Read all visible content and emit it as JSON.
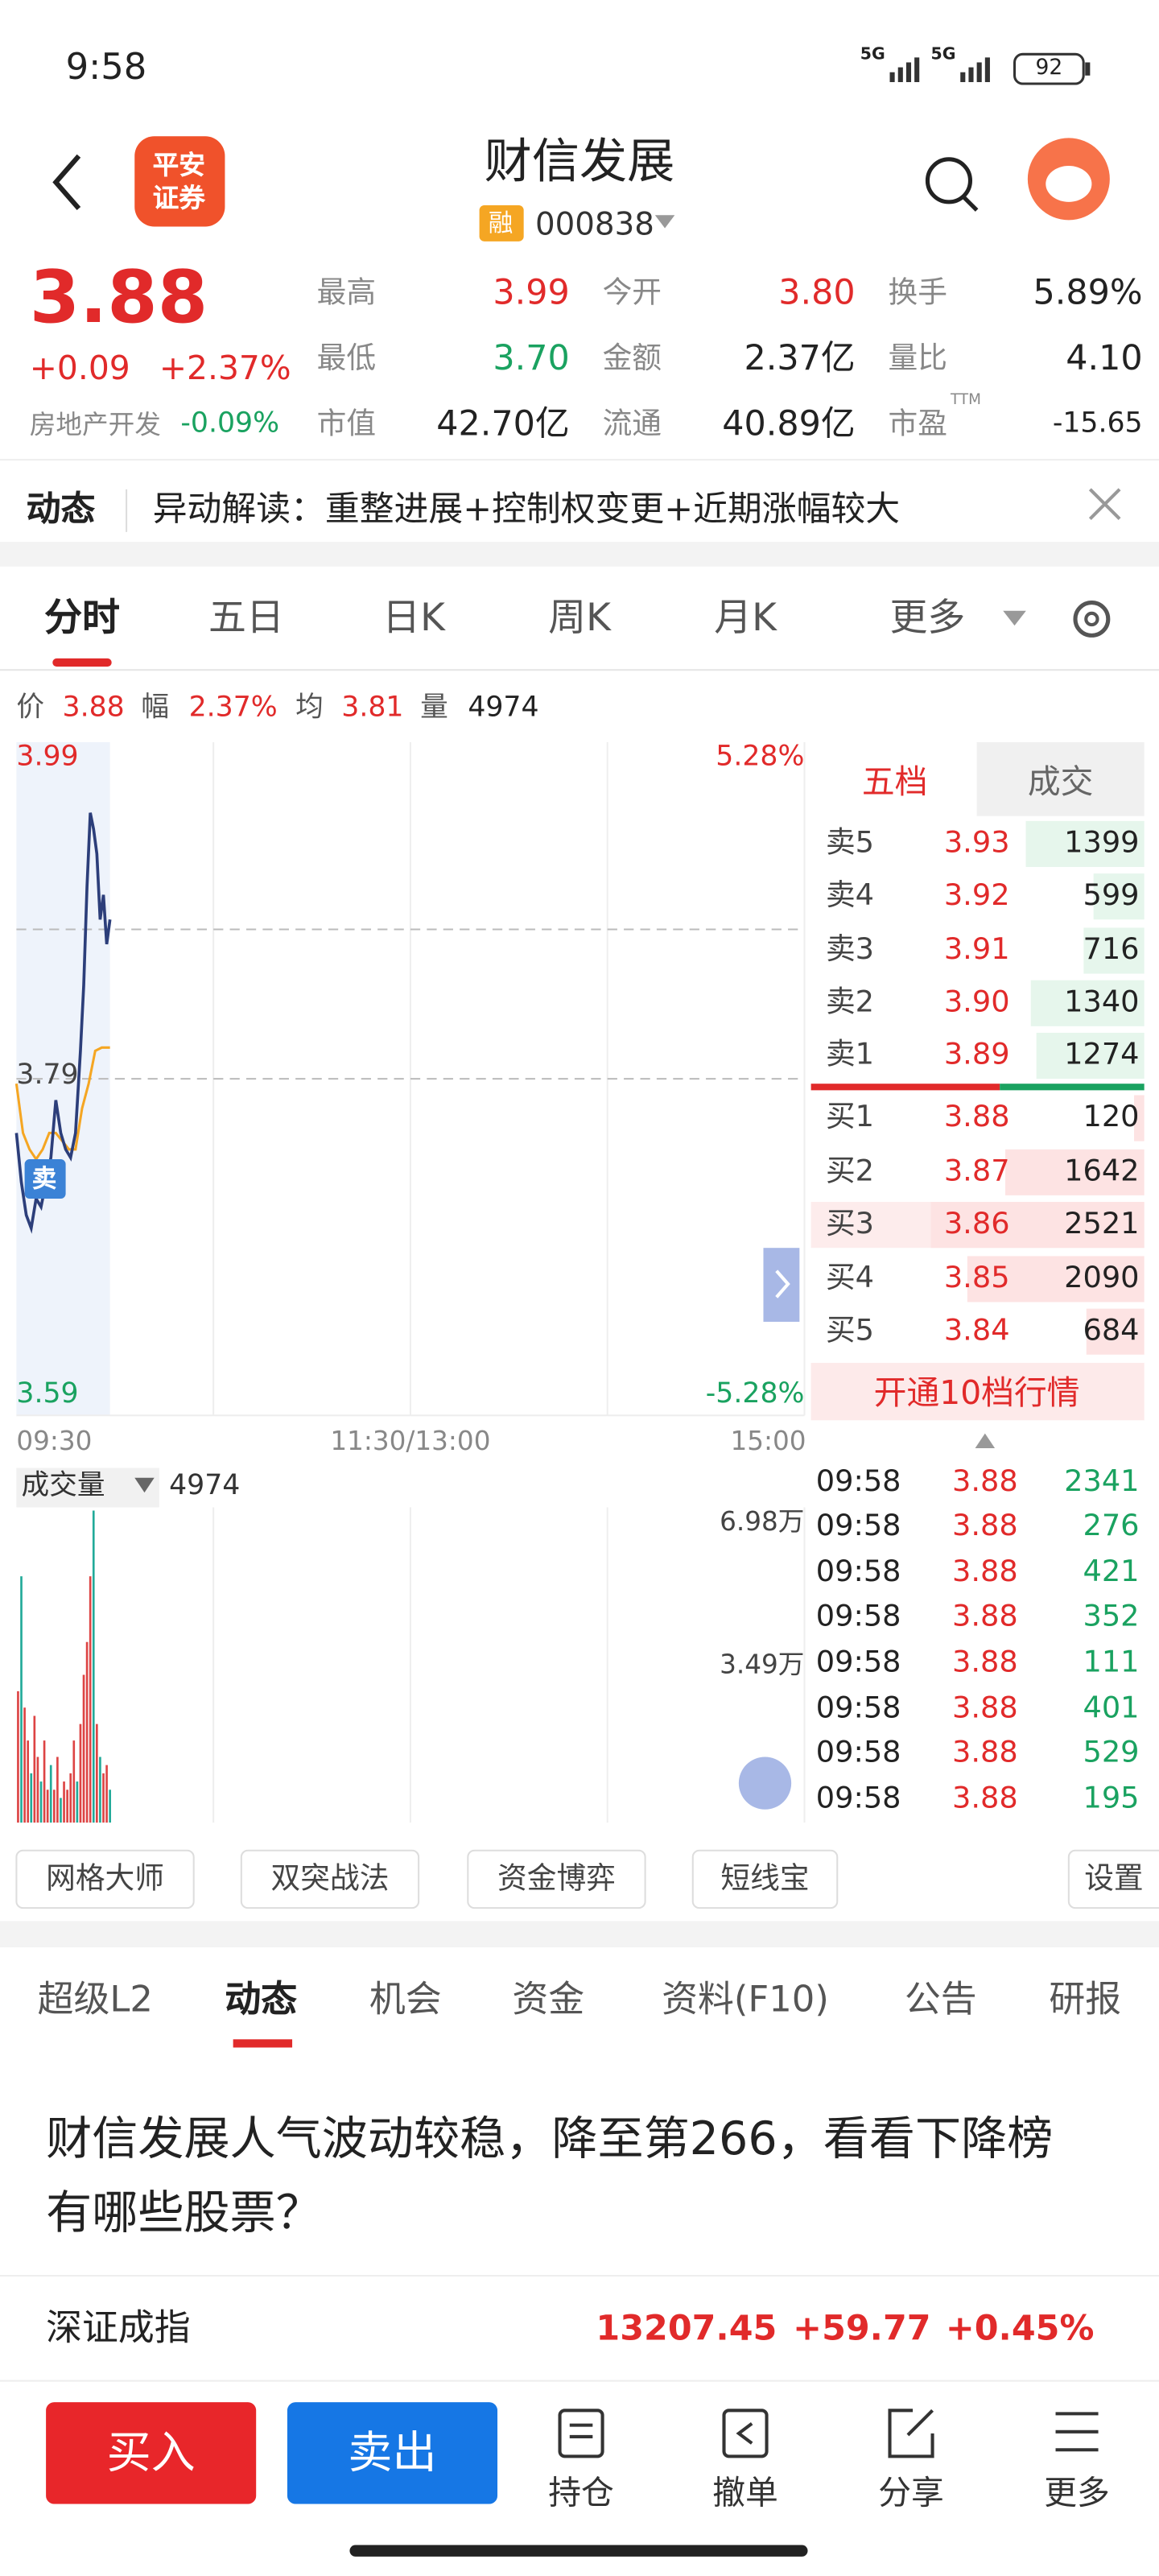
{
  "status": {
    "time": "9:58",
    "net": [
      "5G",
      "5G"
    ],
    "battery": "92"
  },
  "header": {
    "logo": [
      "平安",
      "证券"
    ],
    "title": "财信发展",
    "tag": "融",
    "code": "000838"
  },
  "quote": {
    "price": "3.88",
    "change": "+0.09",
    "pct": "+2.37%",
    "sector": "房地产开发",
    "sector_pct": "-0.09%",
    "stats": [
      [
        "最高",
        "3.99"
      ],
      [
        "今开",
        "3.80"
      ],
      [
        "换手",
        "5.89%"
      ],
      [
        "最低",
        "3.70"
      ],
      [
        "金额",
        "2.37亿"
      ],
      [
        "量比",
        "4.10"
      ],
      [
        "市值",
        "42.70亿"
      ],
      [
        "流通",
        "40.89亿"
      ],
      [
        "市盈",
        "-15.65"
      ]
    ],
    "ttm": "TTM"
  },
  "news": {
    "label": "动态",
    "text": "异动解读：重整进展+控制权变更+近期涨幅较大"
  },
  "tabs": [
    "分时",
    "五日",
    "日K",
    "周K",
    "月K",
    "更多"
  ],
  "info": [
    "价",
    "3.88",
    "幅",
    "2.37%",
    "均",
    "3.81",
    "量",
    "4974"
  ],
  "chart": {
    "high": "3.99",
    "high_pct": "5.28%",
    "mid": "3.79",
    "low": "3.59",
    "low_pct": "-5.28%",
    "x_labels": [
      "09:30",
      "11:30/13:00",
      "15:00"
    ],
    "marker": "卖"
  },
  "volume": {
    "label": "成交量",
    "value": "4974",
    "top": "6.98万",
    "mid": "3.49万"
  },
  "orderbook": {
    "tabs": [
      "五档",
      "成交"
    ],
    "asks": [
      [
        "卖5",
        "3.93",
        "1399"
      ],
      [
        "卖4",
        "3.92",
        "599"
      ],
      [
        "卖3",
        "3.91",
        "716"
      ],
      [
        "卖2",
        "3.90",
        "1340"
      ],
      [
        "卖1",
        "3.89",
        "1274"
      ]
    ],
    "bids": [
      [
        "买1",
        "3.88",
        "120"
      ],
      [
        "买2",
        "3.87",
        "1642"
      ],
      [
        "买3",
        "3.86",
        "2521"
      ],
      [
        "买4",
        "3.85",
        "2090"
      ],
      [
        "买5",
        "3.84",
        "684"
      ]
    ],
    "upgrade": "开通10档行情"
  },
  "trades": [
    [
      "09:58",
      "3.88",
      "2341"
    ],
    [
      "09:58",
      "3.88",
      "276"
    ],
    [
      "09:58",
      "3.88",
      "421"
    ],
    [
      "09:58",
      "3.88",
      "352"
    ],
    [
      "09:58",
      "3.88",
      "111"
    ],
    [
      "09:58",
      "3.88",
      "401"
    ],
    [
      "09:58",
      "3.88",
      "529"
    ],
    [
      "09:58",
      "3.88",
      "195"
    ]
  ],
  "tools": [
    "网格大师",
    "双突战法",
    "资金博弈",
    "短线宝",
    "设置"
  ],
  "sections": [
    "超级L2",
    "动态",
    "机会",
    "资金",
    "资料(F10)",
    "公告",
    "研报"
  ],
  "headline": "财信发展人气波动较稳，降至第266，看看下降榜有哪些股票？",
  "index": {
    "name": "深证成指",
    "value": "13207.45",
    "change": "+59.77",
    "pct": "+0.45%"
  },
  "bottom": {
    "buy": "买入",
    "sell": "卖出",
    "actions": [
      "持仓",
      "撤单",
      "分享",
      "更多"
    ]
  }
}
